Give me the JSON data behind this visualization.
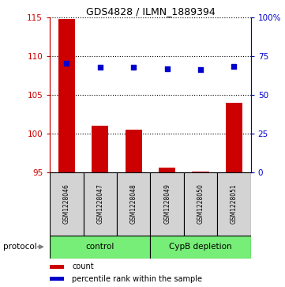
{
  "title": "GDS4828 / ILMN_1889394",
  "samples": [
    "GSM1228046",
    "GSM1228047",
    "GSM1228048",
    "GSM1228049",
    "GSM1228050",
    "GSM1228051"
  ],
  "bar_values": [
    114.8,
    101.0,
    100.5,
    95.6,
    95.05,
    104.0
  ],
  "bar_baseline": 95,
  "dot_values_left_scale": [
    109.1,
    108.6,
    108.6,
    108.35,
    108.25,
    108.7
  ],
  "ylim_left": [
    95,
    115
  ],
  "ylim_right": [
    0,
    100
  ],
  "yticks_left": [
    95,
    100,
    105,
    110,
    115
  ],
  "yticks_right": [
    0,
    25,
    50,
    75,
    100
  ],
  "yticklabels_right": [
    "0",
    "25",
    "50",
    "75",
    "100%"
  ],
  "bar_color": "#cc0000",
  "dot_color": "#0000cc",
  "group1_label": "control",
  "group2_label": "CypB depletion",
  "group1_indices": [
    0,
    1,
    2
  ],
  "group2_indices": [
    3,
    4,
    5
  ],
  "group_color": "#77ee77",
  "sample_box_color": "#d3d3d3",
  "legend_count_label": "count",
  "legend_percentile_label": "percentile rank within the sample",
  "protocol_label": "protocol",
  "left_axis_color": "#cc0000",
  "right_axis_color": "#0000cc",
  "title_fontsize": 9,
  "tick_fontsize": 7.5,
  "bar_width": 0.5
}
